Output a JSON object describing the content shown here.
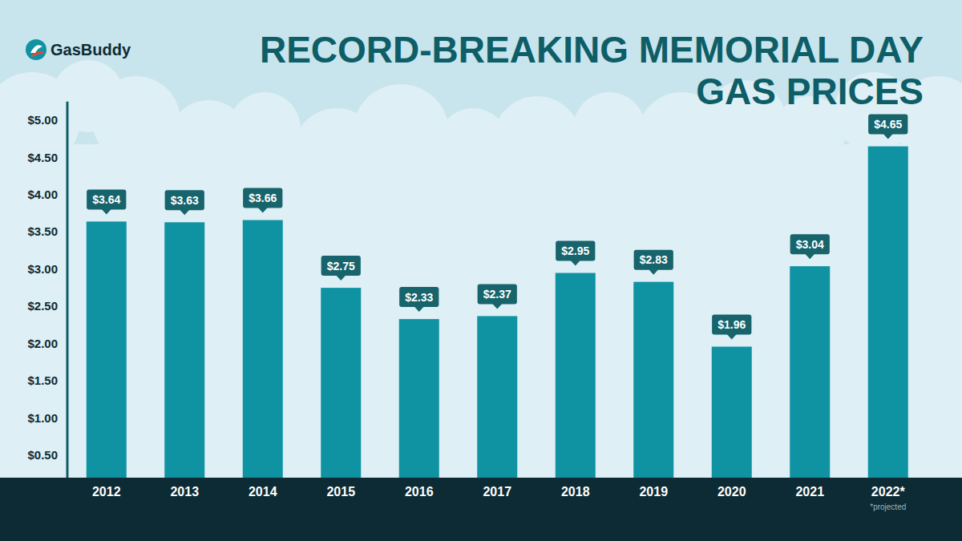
{
  "logo": {
    "text": "GasBuddy"
  },
  "chart_data": {
    "type": "bar",
    "title": "RECORD-BREAKING MEMORIAL DAY GAS PRICES",
    "categories": [
      "2012",
      "2013",
      "2014",
      "2015",
      "2016",
      "2017",
      "2018",
      "2019",
      "2020",
      "2021",
      "2022*"
    ],
    "values": [
      3.64,
      3.63,
      3.66,
      2.75,
      2.33,
      2.37,
      2.95,
      2.83,
      1.96,
      3.04,
      4.65
    ],
    "value_labels": [
      "$3.64",
      "$3.63",
      "$3.66",
      "$2.75",
      "$2.33",
      "$2.37",
      "$2.95",
      "$2.83",
      "$1.96",
      "$3.04",
      "$4.65"
    ],
    "data_labels": true,
    "color": "#0f93a3",
    "ylim": [
      0.2,
      5.25
    ],
    "yticks": [
      {
        "value": 0.5,
        "label": "$0.50"
      },
      {
        "value": 1.0,
        "label": "$1.00"
      },
      {
        "value": 1.5,
        "label": "$1.50"
      },
      {
        "value": 2.0,
        "label": "$2.00"
      },
      {
        "value": 2.5,
        "label": "$2.50"
      },
      {
        "value": 3.0,
        "label": "$3.00"
      },
      {
        "value": 3.5,
        "label": "$3.50"
      },
      {
        "value": 4.0,
        "label": "$4.00"
      },
      {
        "value": 4.5,
        "label": "$4.50"
      },
      {
        "value": 5.0,
        "label": "$5.00"
      }
    ],
    "grid": false,
    "annotations": [
      "*projected"
    ]
  }
}
